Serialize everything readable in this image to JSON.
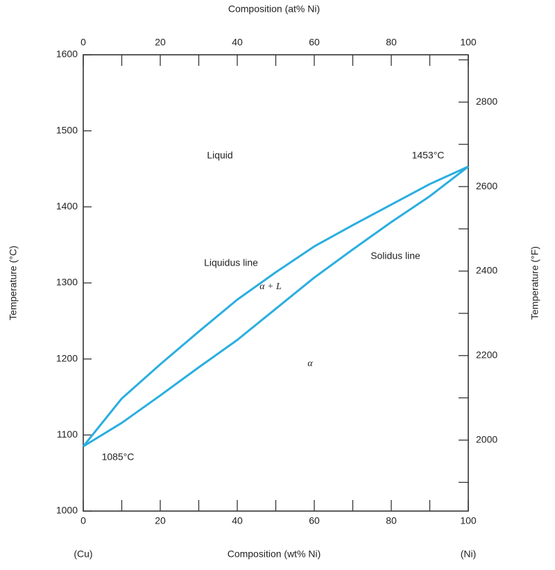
{
  "chart_data": {
    "type": "line",
    "x_top_label": "Composition (at% Ni)",
    "x_label": "Composition (wt% Ni)",
    "y_label": "Temperature (°C)",
    "y2_label": "Temperature (°F)",
    "x_left_end_label": "(Cu)",
    "x_right_end_label": "(Ni)",
    "x": [
      0,
      10,
      20,
      30,
      40,
      50,
      60,
      70,
      80,
      90,
      100
    ],
    "series": [
      {
        "name": "Liquidus line",
        "color": "#29aee0",
        "values": [
          1085,
          1148,
          1193,
          1236,
          1278,
          1314,
          1348,
          1376,
          1403,
          1430,
          1453
        ]
      },
      {
        "name": "Solidus line",
        "color": "#29aee0",
        "values": [
          1085,
          1116,
          1152,
          1189,
          1225,
          1266,
          1307,
          1344,
          1380,
          1414,
          1453
        ]
      }
    ],
    "annotations": [
      "Liquid",
      "1453°C",
      "α + L",
      "α",
      "1085°C"
    ],
    "xlim": [
      0,
      100
    ],
    "xticks": [
      0,
      20,
      40,
      60,
      80,
      100
    ],
    "xminor_ticks": [
      10,
      30,
      50,
      70,
      90
    ],
    "x_top_lim": [
      0,
      100
    ],
    "x_top_ticks": [
      0,
      20,
      40,
      60,
      80,
      100
    ],
    "x_top_minor_ticks": [
      10,
      30,
      50,
      70,
      90
    ],
    "ylim": [
      1000,
      1600
    ],
    "yticks": [
      1000,
      1100,
      1200,
      1300,
      1400,
      1500,
      1600
    ],
    "y2lim": [
      1832,
      2912
    ],
    "y2ticks": [
      2000,
      2200,
      2400,
      2600,
      2800
    ],
    "y2minor_ticks": [
      1900,
      2100,
      2300,
      2500,
      2700,
      2900
    ]
  }
}
